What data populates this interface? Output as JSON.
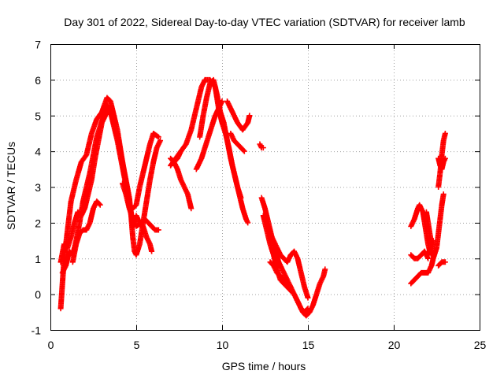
{
  "chart_data": {
    "type": "scatter",
    "title": "Day 301 of 2022, Sidereal Day-to-day VTEC variation (SDTVAR) for receiver lamb",
    "xlabel": "GPS time / hours",
    "ylabel": "SDTVAR / TECUs",
    "xlim": [
      0,
      25
    ],
    "ylim": [
      -1,
      7
    ],
    "xticks": [
      "0",
      "5",
      "10",
      "15",
      "20",
      "25"
    ],
    "yticks": [
      "-1",
      "0",
      "1",
      "2",
      "3",
      "4",
      "5",
      "6",
      "7"
    ],
    "grid": true,
    "marker": "+",
    "color": "#ff0000",
    "series": [
      {
        "segments": [
          [
            [
              0.6,
              -0.4
            ],
            [
              0.7,
              0.3
            ],
            [
              0.8,
              1.0
            ],
            [
              1.0,
              1.8
            ],
            [
              1.2,
              2.6
            ],
            [
              1.5,
              3.2
            ],
            [
              1.8,
              3.7
            ],
            [
              2.1,
              3.9
            ],
            [
              2.4,
              4.5
            ],
            [
              2.7,
              4.9
            ],
            [
              3.0,
              5.1
            ],
            [
              3.3,
              5.5
            ],
            [
              3.5,
              5.4
            ],
            [
              3.7,
              5.0
            ],
            [
              3.9,
              4.6
            ],
            [
              4.1,
              4.0
            ],
            [
              4.3,
              3.4
            ],
            [
              4.5,
              2.9
            ],
            [
              4.6,
              2.5
            ],
            [
              4.8,
              2.4
            ],
            [
              5.0,
              2.5
            ],
            [
              5.2,
              3.0
            ],
            [
              5.4,
              3.4
            ],
            [
              5.6,
              3.8
            ],
            [
              5.8,
              4.2
            ],
            [
              6.0,
              4.5
            ],
            [
              6.3,
              4.4
            ]
          ],
          [
            [
              0.6,
              0.9
            ],
            [
              0.8,
              1.4
            ],
            [
              1.0,
              1.3
            ],
            [
              1.2,
              1.6
            ],
            [
              1.4,
              2.0
            ],
            [
              1.6,
              2.3
            ],
            [
              1.8,
              2.2
            ],
            [
              2.0,
              2.4
            ],
            [
              2.2,
              2.8
            ],
            [
              2.4,
              3.2
            ],
            [
              2.6,
              3.8
            ],
            [
              2.8,
              4.3
            ],
            [
              3.0,
              4.8
            ],
            [
              3.2,
              5.0
            ],
            [
              3.4,
              5.2
            ],
            [
              3.6,
              5.0
            ],
            [
              3.8,
              4.6
            ],
            [
              4.0,
              4.2
            ],
            [
              4.2,
              3.7
            ],
            [
              4.4,
              3.2
            ],
            [
              4.6,
              2.7
            ],
            [
              4.7,
              2.2
            ],
            [
              4.8,
              1.6
            ],
            [
              4.9,
              1.2
            ],
            [
              5.0,
              1.1
            ],
            [
              5.2,
              1.4
            ],
            [
              5.4,
              2.0
            ],
            [
              5.6,
              2.6
            ],
            [
              5.8,
              3.2
            ],
            [
              6.0,
              3.7
            ],
            [
              6.2,
              4.1
            ],
            [
              6.4,
              4.3
            ]
          ],
          [
            [
              0.7,
              0.6
            ],
            [
              0.9,
              0.8
            ],
            [
              1.1,
              1.2
            ],
            [
              1.3,
              1.1
            ],
            [
              1.5,
              1.5
            ],
            [
              1.7,
              2.0
            ],
            [
              1.9,
              2.6
            ],
            [
              2.1,
              3.0
            ],
            [
              2.3,
              3.4
            ],
            [
              2.5,
              3.9
            ],
            [
              2.7,
              4.4
            ],
            [
              2.9,
              4.7
            ],
            [
              3.1,
              5.0
            ],
            [
              3.3,
              5.3
            ],
            [
              3.5,
              5.1
            ],
            [
              3.7,
              4.7
            ],
            [
              3.9,
              4.3
            ],
            [
              4.1,
              3.8
            ],
            [
              4.3,
              3.3
            ],
            [
              4.5,
              2.8
            ],
            [
              4.7,
              2.3
            ],
            [
              4.8,
              1.9
            ],
            [
              5.0,
              2.2
            ],
            [
              5.2,
              2.0
            ],
            [
              5.4,
              1.9
            ],
            [
              5.6,
              1.6
            ],
            [
              5.8,
              1.4
            ],
            [
              5.9,
              1.2
            ]
          ],
          [
            [
              4.2,
              3.1
            ],
            [
              4.4,
              2.8
            ],
            [
              4.6,
              2.4
            ],
            [
              4.8,
              2.1
            ],
            [
              5.0,
              1.9
            ],
            [
              5.3,
              2.0
            ],
            [
              5.5,
              2.1
            ],
            [
              5.7,
              2.0
            ],
            [
              5.9,
              1.9
            ],
            [
              6.1,
              1.8
            ],
            [
              6.3,
              1.8
            ]
          ],
          [
            [
              1.3,
              0.9
            ],
            [
              1.5,
              1.4
            ],
            [
              1.7,
              1.7
            ],
            [
              1.9,
              1.8
            ],
            [
              2.1,
              1.8
            ],
            [
              2.3,
              2.0
            ],
            [
              2.5,
              2.4
            ],
            [
              2.7,
              2.6
            ],
            [
              2.9,
              2.5
            ]
          ]
        ]
      },
      {
        "segments": [
          [
            [
              7.0,
              3.6
            ],
            [
              7.3,
              3.8
            ],
            [
              7.6,
              4.0
            ],
            [
              7.9,
              4.2
            ],
            [
              8.2,
              4.6
            ],
            [
              8.5,
              5.2
            ],
            [
              8.8,
              5.8
            ],
            [
              9.0,
              6.0
            ],
            [
              9.3,
              6.0
            ],
            [
              9.6,
              5.8
            ],
            [
              9.8,
              5.2
            ],
            [
              10.0,
              4.8
            ],
            [
              10.2,
              4.5
            ],
            [
              10.4,
              4.1
            ],
            [
              10.6,
              3.6
            ],
            [
              10.8,
              3.2
            ],
            [
              11.0,
              2.8
            ],
            [
              11.2,
              2.4
            ],
            [
              11.4,
              2.1
            ],
            [
              11.5,
              2.0
            ]
          ],
          [
            [
              8.7,
              4.4
            ],
            [
              8.9,
              5.0
            ],
            [
              9.1,
              5.5
            ],
            [
              9.3,
              5.9
            ],
            [
              9.5,
              6.0
            ],
            [
              9.7,
              5.6
            ],
            [
              9.9,
              5.1
            ],
            [
              10.1,
              4.8
            ],
            [
              10.3,
              4.3
            ],
            [
              10.5,
              3.8
            ],
            [
              10.7,
              3.4
            ],
            [
              10.9,
              3.0
            ],
            [
              11.1,
              2.7
            ]
          ],
          [
            [
              8.5,
              3.5
            ],
            [
              8.8,
              3.8
            ],
            [
              9.0,
              4.1
            ],
            [
              9.2,
              4.4
            ],
            [
              9.4,
              4.7
            ],
            [
              9.6,
              5.0
            ],
            [
              9.8,
              5.2
            ],
            [
              10.0,
              5.4
            ]
          ],
          [
            [
              7.0,
              3.8
            ],
            [
              7.2,
              3.7
            ],
            [
              7.4,
              3.5
            ],
            [
              7.6,
              3.2
            ],
            [
              7.8,
              3.0
            ],
            [
              8.0,
              2.8
            ],
            [
              8.2,
              2.4
            ]
          ],
          [
            [
              10.3,
              5.4
            ],
            [
              10.6,
              5.1
            ],
            [
              10.9,
              4.8
            ],
            [
              11.2,
              4.6
            ],
            [
              11.5,
              4.8
            ],
            [
              11.6,
              5.0
            ]
          ],
          [
            [
              10.5,
              4.5
            ],
            [
              10.7,
              4.3
            ],
            [
              10.9,
              4.2
            ],
            [
              11.1,
              4.1
            ],
            [
              11.3,
              4.0
            ]
          ],
          [
            [
              7.2,
              3.7
            ],
            [
              7.4,
              3.8
            ],
            [
              7.6,
              4.0
            ]
          ],
          [
            [
              12.2,
              4.2
            ],
            [
              12.3,
              4.1
            ],
            [
              12.4,
              4.1
            ]
          ]
        ]
      },
      {
        "segments": [
          [
            [
              12.3,
              2.7
            ],
            [
              12.5,
              2.4
            ],
            [
              12.7,
              2.0
            ],
            [
              12.9,
              1.6
            ],
            [
              13.1,
              1.2
            ],
            [
              13.3,
              0.9
            ],
            [
              13.5,
              0.7
            ],
            [
              13.7,
              0.5
            ],
            [
              13.9,
              0.3
            ],
            [
              14.1,
              0.1
            ],
            [
              14.3,
              -0.1
            ],
            [
              14.5,
              -0.3
            ],
            [
              14.7,
              -0.5
            ],
            [
              14.9,
              -0.6
            ],
            [
              15.1,
              -0.5
            ],
            [
              15.3,
              -0.3
            ],
            [
              15.5,
              0.0
            ],
            [
              15.7,
              0.3
            ],
            [
              15.9,
              0.5
            ],
            [
              16.0,
              0.7
            ]
          ],
          [
            [
              12.4,
              2.2
            ],
            [
              12.6,
              1.8
            ],
            [
              12.8,
              1.4
            ],
            [
              13.0,
              1.1
            ],
            [
              13.2,
              0.7
            ],
            [
              13.4,
              0.4
            ],
            [
              13.6,
              0.3
            ],
            [
              13.8,
              0.2
            ],
            [
              14.0,
              0.1
            ],
            [
              14.2,
              0.0
            ],
            [
              14.4,
              -0.2
            ],
            [
              14.6,
              -0.4
            ],
            [
              14.8,
              -0.5
            ],
            [
              15.0,
              -0.4
            ]
          ],
          [
            [
              12.6,
              2.0
            ],
            [
              12.8,
              1.7
            ],
            [
              13.0,
              1.5
            ],
            [
              13.2,
              1.3
            ],
            [
              13.4,
              1.1
            ],
            [
              13.6,
              1.0
            ],
            [
              13.8,
              0.9
            ],
            [
              14.0,
              1.1
            ],
            [
              14.2,
              1.2
            ],
            [
              14.4,
              1.0
            ],
            [
              14.6,
              0.6
            ],
            [
              14.8,
              0.2
            ],
            [
              15.0,
              -0.1
            ]
          ],
          [
            [
              12.8,
              0.9
            ],
            [
              13.0,
              0.8
            ],
            [
              13.2,
              0.6
            ],
            [
              13.4,
              0.5
            ],
            [
              13.6,
              0.4
            ],
            [
              13.8,
              0.3
            ],
            [
              14.0,
              0.2
            ]
          ]
        ]
      },
      {
        "segments": [
          [
            [
              21.0,
              1.9
            ],
            [
              21.2,
              2.1
            ],
            [
              21.4,
              2.4
            ],
            [
              21.5,
              2.5
            ],
            [
              21.7,
              2.3
            ],
            [
              21.8,
              2.0
            ],
            [
              21.9,
              1.7
            ],
            [
              22.0,
              1.4
            ],
            [
              22.1,
              1.2
            ],
            [
              22.2,
              1.1
            ],
            [
              22.3,
              1.5
            ]
          ],
          [
            [
              21.0,
              0.3
            ],
            [
              21.2,
              0.4
            ],
            [
              21.4,
              0.5
            ],
            [
              21.6,
              0.6
            ],
            [
              21.8,
              0.6
            ],
            [
              22.0,
              0.6
            ],
            [
              22.2,
              0.8
            ],
            [
              22.3,
              1.0
            ],
            [
              22.5,
              1.3
            ],
            [
              22.6,
              1.7
            ],
            [
              22.7,
              2.1
            ],
            [
              22.8,
              2.5
            ],
            [
              22.9,
              2.8
            ]
          ],
          [
            [
              21.0,
              1.1
            ],
            [
              21.2,
              1.0
            ],
            [
              21.4,
              1.0
            ],
            [
              21.6,
              1.1
            ],
            [
              21.8,
              1.2
            ],
            [
              22.0,
              1.0
            ]
          ],
          [
            [
              22.6,
              3.0
            ],
            [
              22.7,
              3.4
            ],
            [
              22.8,
              3.9
            ],
            [
              22.9,
              4.3
            ],
            [
              23.0,
              4.5
            ]
          ],
          [
            [
              22.6,
              3.8
            ],
            [
              22.7,
              3.6
            ],
            [
              22.8,
              3.5
            ],
            [
              22.9,
              3.7
            ],
            [
              23.0,
              3.8
            ]
          ],
          [
            [
              22.6,
              0.8
            ],
            [
              22.8,
              0.9
            ],
            [
              23.0,
              0.9
            ]
          ],
          [
            [
              21.9,
              2.3
            ],
            [
              22.0,
              2.0
            ],
            [
              22.1,
              1.7
            ],
            [
              22.2,
              1.4
            ]
          ]
        ]
      }
    ]
  }
}
